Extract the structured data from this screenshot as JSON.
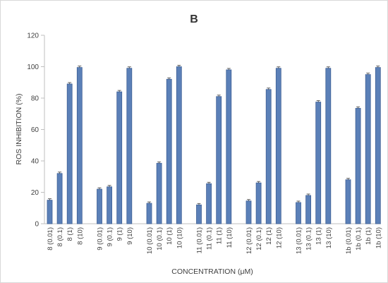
{
  "chart_data": {
    "type": "bar",
    "title": "B",
    "xlabel": "CONCENTRATION (μM)",
    "ylabel": "ROS INHIBITION (%)",
    "ylim": [
      0,
      120
    ],
    "yticks": [
      0,
      20,
      40,
      60,
      80,
      100,
      120
    ],
    "grid": false,
    "legend": "none",
    "bar_color": "#5b80b8",
    "bar_edge_color": "#3e5f94",
    "error_bars": true,
    "groups": [
      {
        "categories": [
          "8 (0.01)",
          "8 (0.1)",
          "8 (1)",
          "8 (10)"
        ],
        "values": [
          15,
          32,
          89,
          99.5
        ]
      },
      {
        "categories": [
          "9 (0.01)",
          "9 (0.1)",
          "9 (1)",
          "9 (10)"
        ],
        "values": [
          22,
          23.5,
          84,
          99
        ]
      },
      {
        "categories": [
          "10 (0.01)",
          "10 (0.1)",
          "10 (1)",
          "10 (10)"
        ],
        "values": [
          13,
          38.5,
          92,
          100
        ]
      },
      {
        "categories": [
          "11 (0.01)",
          "11 (0.1)",
          "11 (1)",
          "11 (10)"
        ],
        "values": [
          12,
          25.5,
          81,
          98
        ]
      },
      {
        "categories": [
          "12 (0.01)",
          "12 (0.1)",
          "12 (1)",
          "12 (10)"
        ],
        "values": [
          14.5,
          26,
          85.5,
          99
        ]
      },
      {
        "categories": [
          "13 (0.01)",
          "13 (0.1)",
          "13 (1)",
          "13 (10)"
        ],
        "values": [
          13.5,
          18,
          77.5,
          99
        ]
      },
      {
        "categories": [
          "1b (0.01)",
          "1b (0.1)",
          "1b (1)",
          "1b (10)"
        ],
        "values": [
          28,
          73.5,
          95,
          99.5
        ]
      }
    ]
  }
}
